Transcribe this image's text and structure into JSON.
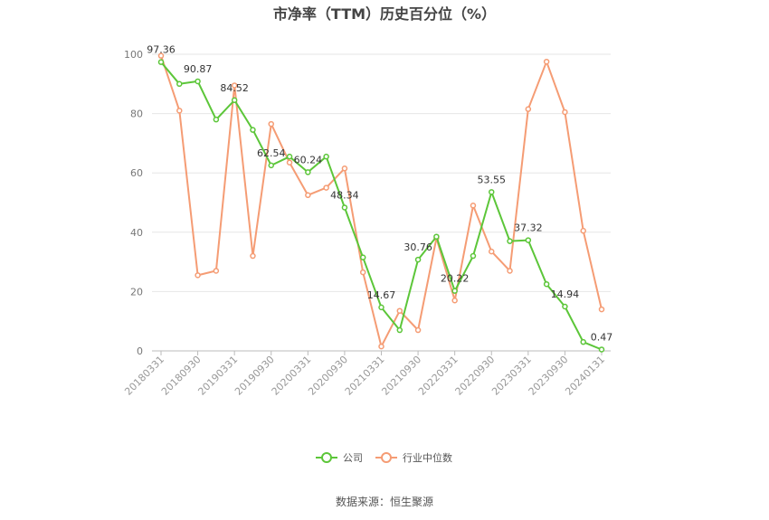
{
  "chart_data": {
    "type": "line",
    "title": "市净率（TTM）历史百分位（%）",
    "xlabel": "",
    "ylabel": "",
    "ylim": [
      0,
      100
    ],
    "yticks": [
      0,
      20,
      40,
      60,
      80,
      100
    ],
    "grid": true,
    "legend_position": "bottom-center",
    "x": [
      "20180331",
      "20180630",
      "20180930",
      "20181231",
      "20190331",
      "20190630",
      "20190930",
      "20191231",
      "20200331",
      "20200630",
      "20200930",
      "20201231",
      "20210331",
      "20210630",
      "20210930",
      "20211231",
      "20220331",
      "20220630",
      "20220930",
      "20221231",
      "20230331",
      "20230630",
      "20230930",
      "20231231",
      "20240131"
    ],
    "xtick_labels": [
      "20180331",
      "20180930",
      "20190331",
      "20190930",
      "20200331",
      "20200930",
      "20210331",
      "20210930",
      "20220331",
      "20220930",
      "20230331",
      "20230930",
      "20240131"
    ],
    "series": [
      {
        "name": "公司",
        "color": "#5cc639",
        "values": [
          97.36,
          90.0,
          90.87,
          78.0,
          84.52,
          74.5,
          62.54,
          65.5,
          60.24,
          65.5,
          48.34,
          31.5,
          14.67,
          7.0,
          30.76,
          38.5,
          20.22,
          32.0,
          53.55,
          37.0,
          37.32,
          22.5,
          14.94,
          3.0,
          0.47
        ],
        "labels": {
          "0": "97.36",
          "2": "90.87",
          "4": "84.52",
          "6": "62.54",
          "8": "60.24",
          "10": "48.34",
          "12": "14.67",
          "14": "30.76",
          "16": "20.22",
          "18": "53.55",
          "20": "37.32",
          "22": "14.94",
          "24": "0.47"
        }
      },
      {
        "name": "行业中位数",
        "color": "#f59c74",
        "values": [
          99.5,
          81.0,
          25.5,
          27.0,
          89.5,
          32.0,
          76.5,
          63.5,
          52.5,
          55.0,
          61.5,
          26.5,
          1.5,
          13.5,
          7.0,
          38.0,
          17.0,
          49.0,
          33.5,
          27.0,
          81.5,
          97.5,
          80.5,
          40.5,
          14.0
        ]
      }
    ]
  },
  "footer": {
    "source": "数据来源：恒生聚源"
  }
}
